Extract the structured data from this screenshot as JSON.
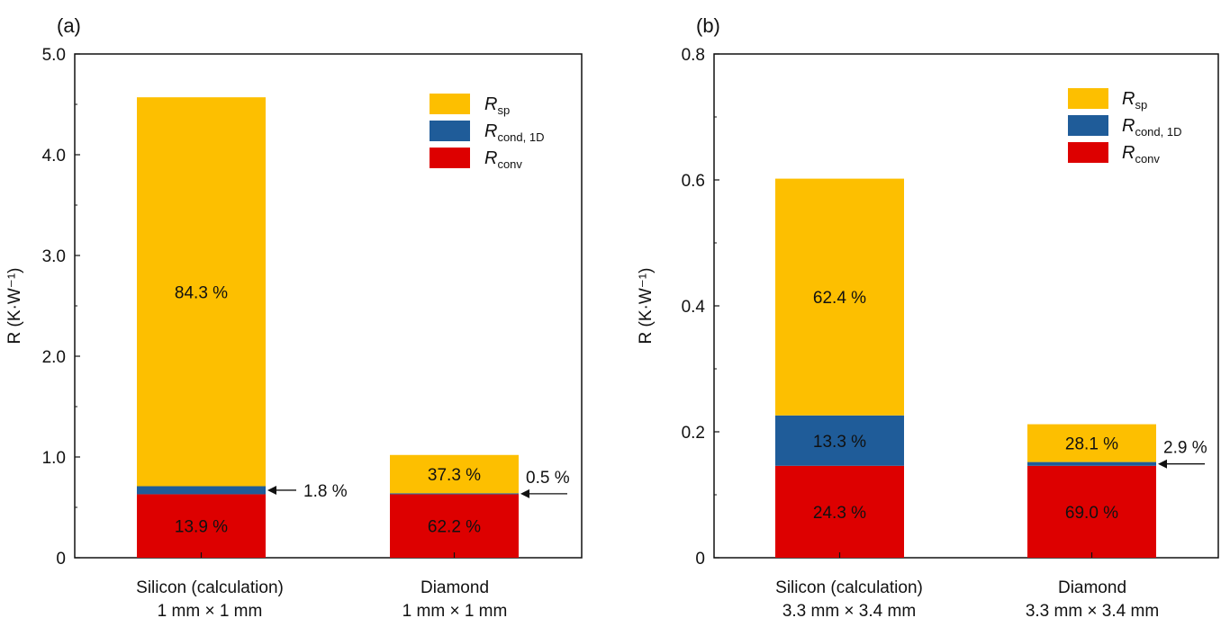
{
  "colors": {
    "sp": "#FDBF00",
    "cond": "#1F5C99",
    "conv": "#DD0000"
  },
  "chart_data": [
    {
      "panel_label": "(a)",
      "type": "bar",
      "stacked": true,
      "ylabel": "R (K·W⁻¹)",
      "ylim": [
        0,
        5.0
      ],
      "yticks": [
        "0",
        "1.0",
        "2.0",
        "3.0",
        "4.0",
        "5.0"
      ],
      "ytick_values": [
        0,
        1.0,
        2.0,
        3.0,
        4.0,
        5.0
      ],
      "categories": [
        {
          "line1": "Silicon (calculation)",
          "line2": "1 mm × 1 mm"
        },
        {
          "line1": "Diamond",
          "line2": "1 mm × 1 mm"
        }
      ],
      "series": [
        {
          "key": "conv",
          "legend_main": "R",
          "legend_sub": "conv",
          "values": [
            0.63,
            0.63
          ],
          "labels": [
            "13.9 %",
            "62.2 %"
          ]
        },
        {
          "key": "cond",
          "legend_main": "R",
          "legend_sub": "cond, 1D",
          "values": [
            0.08,
            0.01
          ],
          "labels": [
            "",
            ""
          ]
        },
        {
          "key": "sp",
          "legend_main": "R",
          "legend_sub": "sp",
          "values": [
            3.86,
            0.38
          ],
          "labels": [
            "84.3 %",
            "37.3 %"
          ]
        }
      ],
      "annotations": [
        {
          "category": 0,
          "series": "cond",
          "text": "1.8 %",
          "style": "right-arrow"
        },
        {
          "category": 1,
          "series": "cond",
          "text": "0.5 %",
          "style": "long-arrow"
        }
      ]
    },
    {
      "panel_label": "(b)",
      "type": "bar",
      "stacked": true,
      "ylabel": "R (K·W⁻¹)",
      "ylim": [
        0,
        0.8
      ],
      "yticks": [
        "0",
        "0.2",
        "0.4",
        "0.6",
        "0.8"
      ],
      "ytick_values": [
        0,
        0.2,
        0.4,
        0.6,
        0.8
      ],
      "categories": [
        {
          "line1": "Silicon (calculation)",
          "line2": "3.3 mm × 3.4 mm"
        },
        {
          "line1": "Diamond",
          "line2": "3.3 mm × 3.4 mm"
        }
      ],
      "series": [
        {
          "key": "conv",
          "legend_main": "R",
          "legend_sub": "conv",
          "values": [
            0.146,
            0.146
          ],
          "labels": [
            "24.3 %",
            "69.0 %"
          ]
        },
        {
          "key": "cond",
          "legend_main": "R",
          "legend_sub": "cond, 1D",
          "values": [
            0.08,
            0.006
          ],
          "labels": [
            "13.3 %",
            ""
          ]
        },
        {
          "key": "sp",
          "legend_main": "R",
          "legend_sub": "sp",
          "values": [
            0.376,
            0.06
          ],
          "labels": [
            "62.4 %",
            "28.1 %"
          ]
        }
      ],
      "annotations": [
        {
          "category": 1,
          "series": "cond",
          "text": "2.9 %",
          "style": "long-arrow"
        }
      ]
    }
  ]
}
